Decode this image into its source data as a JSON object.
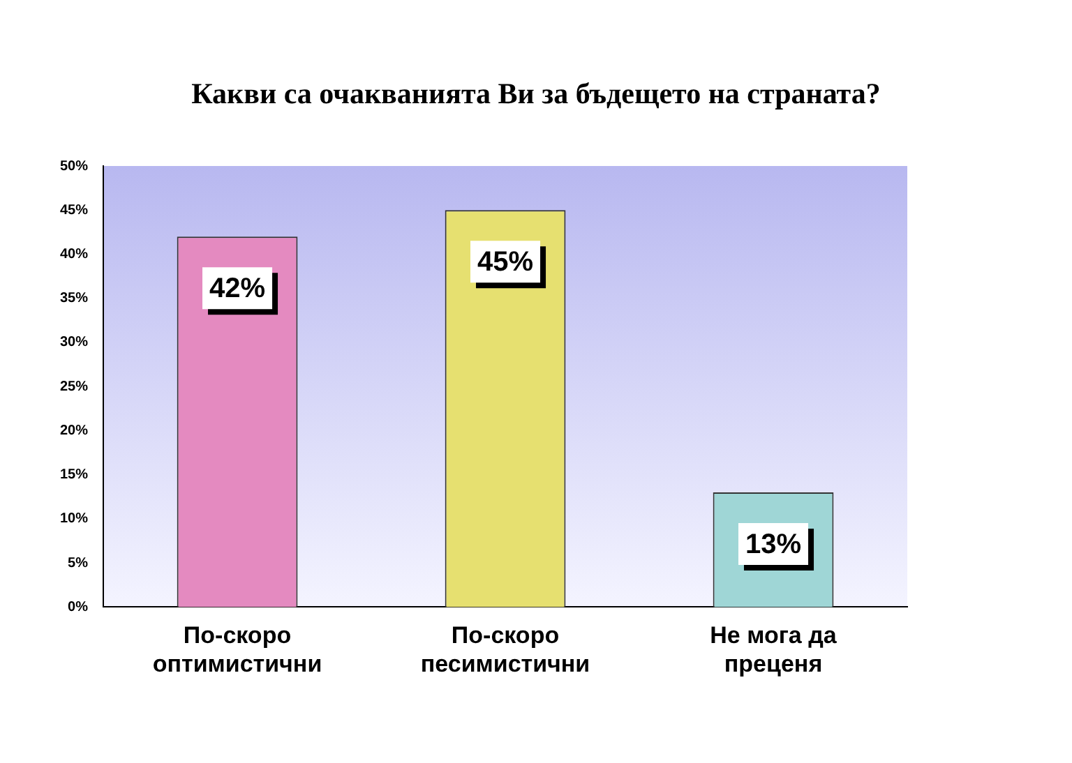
{
  "chart_data": {
    "type": "bar",
    "title": "Какви са очакванията Ви за бъдещето на страната?",
    "categories": [
      "По-скоро оптимистични",
      "По-скоро песимистични",
      "Не мога да преценя"
    ],
    "values": [
      42,
      45,
      13
    ],
    "colors": [
      "#e48ac0",
      "#e6e070",
      "#9fd6d6"
    ],
    "value_labels": [
      "42%",
      "45%",
      "13%"
    ],
    "ylim": [
      0,
      50
    ],
    "yticks": [
      {
        "value": 0,
        "label": "0%"
      },
      {
        "value": 5,
        "label": "5%"
      },
      {
        "value": 10,
        "label": "10%"
      },
      {
        "value": 15,
        "label": "15%"
      },
      {
        "value": 20,
        "label": "20%"
      },
      {
        "value": 25,
        "label": "25%"
      },
      {
        "value": 30,
        "label": "30%"
      },
      {
        "value": 35,
        "label": "35%"
      },
      {
        "value": 40,
        "label": "40%"
      },
      {
        "value": 45,
        "label": "45%"
      },
      {
        "value": 50,
        "label": "50%"
      }
    ],
    "grid": false,
    "legend": false
  }
}
